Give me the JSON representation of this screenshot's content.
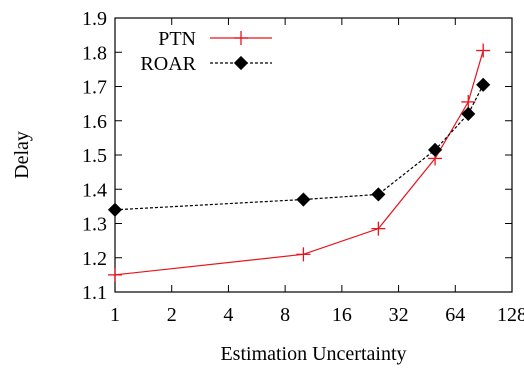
{
  "chart_data": {
    "type": "line",
    "title": "",
    "xlabel": "Estimation Uncertainty",
    "ylabel": "Delay",
    "x_scale": "log2",
    "xlim": [
      1,
      128
    ],
    "ylim": [
      1.1,
      1.9
    ],
    "x_ticks": [
      1,
      2,
      4,
      8,
      16,
      32,
      64,
      128
    ],
    "x_tick_labels": [
      "1",
      "2",
      "4",
      "8",
      "16",
      "32",
      "64",
      "128"
    ],
    "y_ticks": [
      1.1,
      1.2,
      1.3,
      1.4,
      1.5,
      1.6,
      1.7,
      1.8,
      1.9
    ],
    "y_tick_labels": [
      "1.1",
      "1.2",
      "1.3",
      "1.4",
      "1.5",
      "1.6",
      "1.7",
      "1.8",
      "1.9"
    ],
    "grid": false,
    "legend_position": "top-left",
    "series": [
      {
        "name": "PTN",
        "color": "#e8141c",
        "marker": "plus",
        "line_style": "solid",
        "x": [
          1,
          10,
          25,
          50,
          75,
          90
        ],
        "y": [
          1.15,
          1.21,
          1.285,
          1.49,
          1.655,
          1.805
        ]
      },
      {
        "name": "ROAR",
        "color": "#000000",
        "marker": "diamond",
        "line_style": "dashed",
        "x": [
          1,
          10,
          25,
          50,
          75,
          90
        ],
        "y": [
          1.34,
          1.37,
          1.385,
          1.515,
          1.62,
          1.705
        ]
      }
    ]
  }
}
